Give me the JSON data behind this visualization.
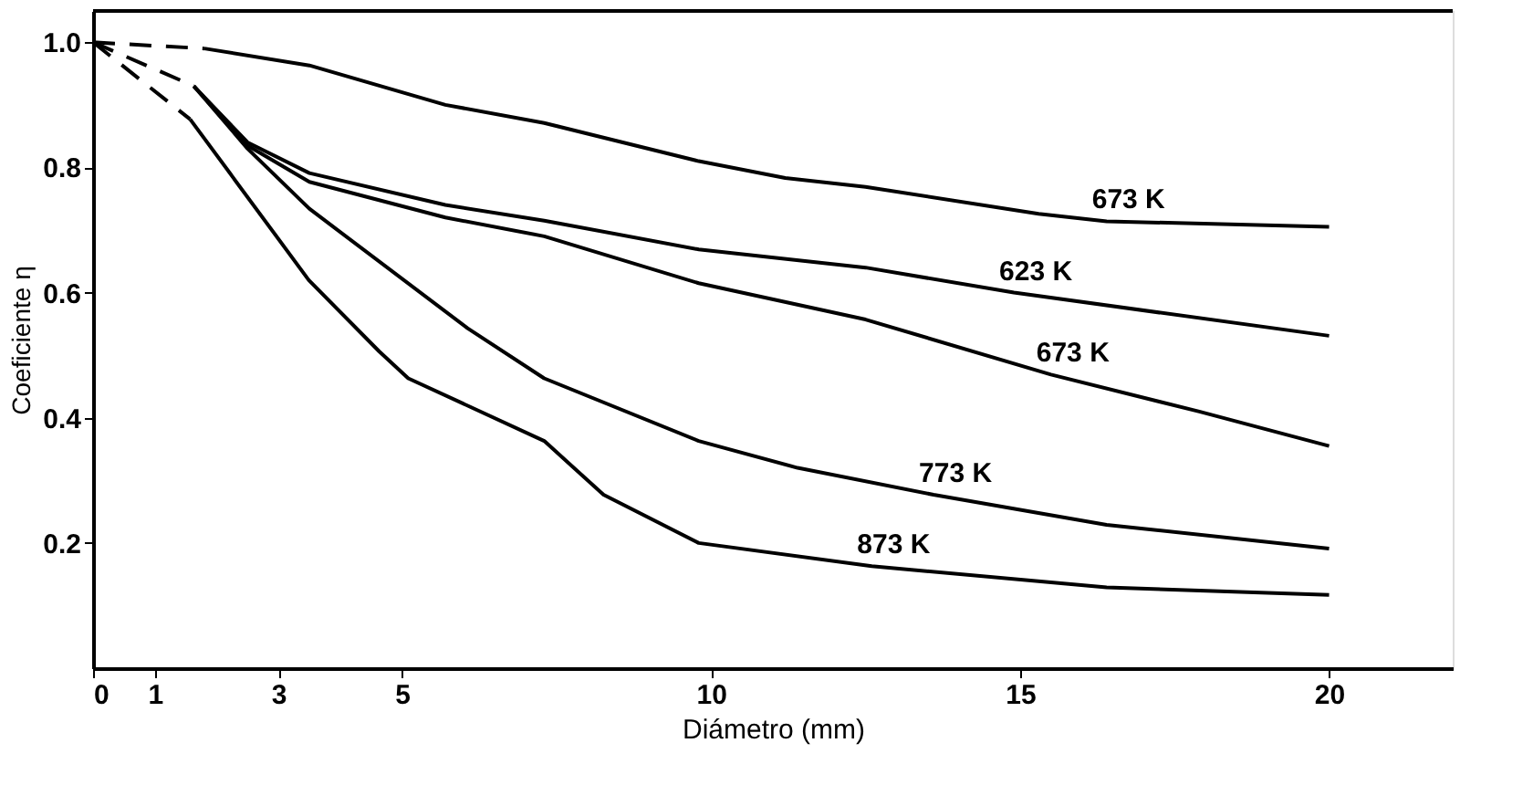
{
  "chart_data": {
    "type": "line",
    "xlabel": "Diámetro (mm)",
    "ylabel": "Coeficiente η",
    "xlim": [
      0,
      22
    ],
    "ylim": [
      0,
      1.05
    ],
    "xticks": [
      0,
      1,
      3,
      5,
      10,
      15,
      20
    ],
    "yticks": [
      0.2,
      0.4,
      0.6,
      0.8,
      {
        "value": 1,
        "label": "1.0"
      }
    ],
    "grid": false,
    "marker": "none",
    "series": [
      {
        "color": "#000000",
        "line_style": "dashed",
        "x": [
          0,
          1.8
        ],
        "values": [
          1.0,
          0.99
        ]
      },
      {
        "color": "#000000",
        "line_style": "solid",
        "x": [
          1.8,
          3.5,
          5.7,
          7.3,
          9.8,
          11.2,
          12.5,
          15.3,
          16.4,
          20
        ],
        "values": [
          0.99,
          0.963,
          0.9,
          0.871,
          0.81,
          0.783,
          0.769,
          0.726,
          0.714,
          0.705
        ]
      },
      {
        "color": "#000000",
        "line_style": "dashed",
        "x": [
          0,
          1.63
        ],
        "values": [
          1.0,
          0.93
        ]
      },
      {
        "color": "#000000",
        "line_style": "solid",
        "x": [
          1.63,
          2.5,
          3.5,
          5.7,
          7.3,
          9.8,
          12.5,
          14.9,
          20
        ],
        "values": [
          0.93,
          0.84,
          0.791,
          0.74,
          0.715,
          0.669,
          0.64,
          0.6,
          0.531
        ]
      },
      {
        "color": "#000000",
        "line_style": "solid",
        "x": [
          1.63,
          2.5,
          3.5,
          5.7,
          7.3,
          9.8,
          12.5,
          15.5,
          17.9,
          20
        ],
        "values": [
          0.93,
          0.835,
          0.777,
          0.72,
          0.69,
          0.615,
          0.557,
          0.469,
          0.41,
          0.355
        ]
      },
      {
        "color": "#000000",
        "line_style": "solid",
        "x": [
          1.63,
          2.5,
          3.5,
          6.06,
          7.3,
          9.8,
          11.4,
          13.6,
          16.4,
          20
        ],
        "values": [
          0.93,
          0.83,
          0.734,
          0.543,
          0.463,
          0.363,
          0.32,
          0.277,
          0.229,
          0.191
        ]
      },
      {
        "color": "#000000",
        "line_style": "dashed",
        "x": [
          0,
          1.57
        ],
        "values": [
          1.0,
          0.877
        ]
      },
      {
        "color": "#000000",
        "line_style": "solid",
        "x": [
          1.57,
          3.49,
          4.63,
          5.1,
          7.3,
          8.26,
          9.8,
          12.6,
          16.4,
          20
        ],
        "values": [
          0.877,
          0.62,
          0.506,
          0.463,
          0.363,
          0.277,
          0.2,
          0.163,
          0.129,
          0.117
        ]
      }
    ],
    "annotations": [
      {
        "text": "673 K",
        "x": 16.4,
        "y": 0.714
      },
      {
        "text": "623 K",
        "x": 14.9,
        "y": 0.6
      },
      {
        "text": "673 K",
        "x": 15.5,
        "y": 0.469
      },
      {
        "text": "773 K",
        "x": 13.6,
        "y": 0.277
      },
      {
        "text": "873 K",
        "x": 12.6,
        "y": 0.163
      }
    ]
  }
}
